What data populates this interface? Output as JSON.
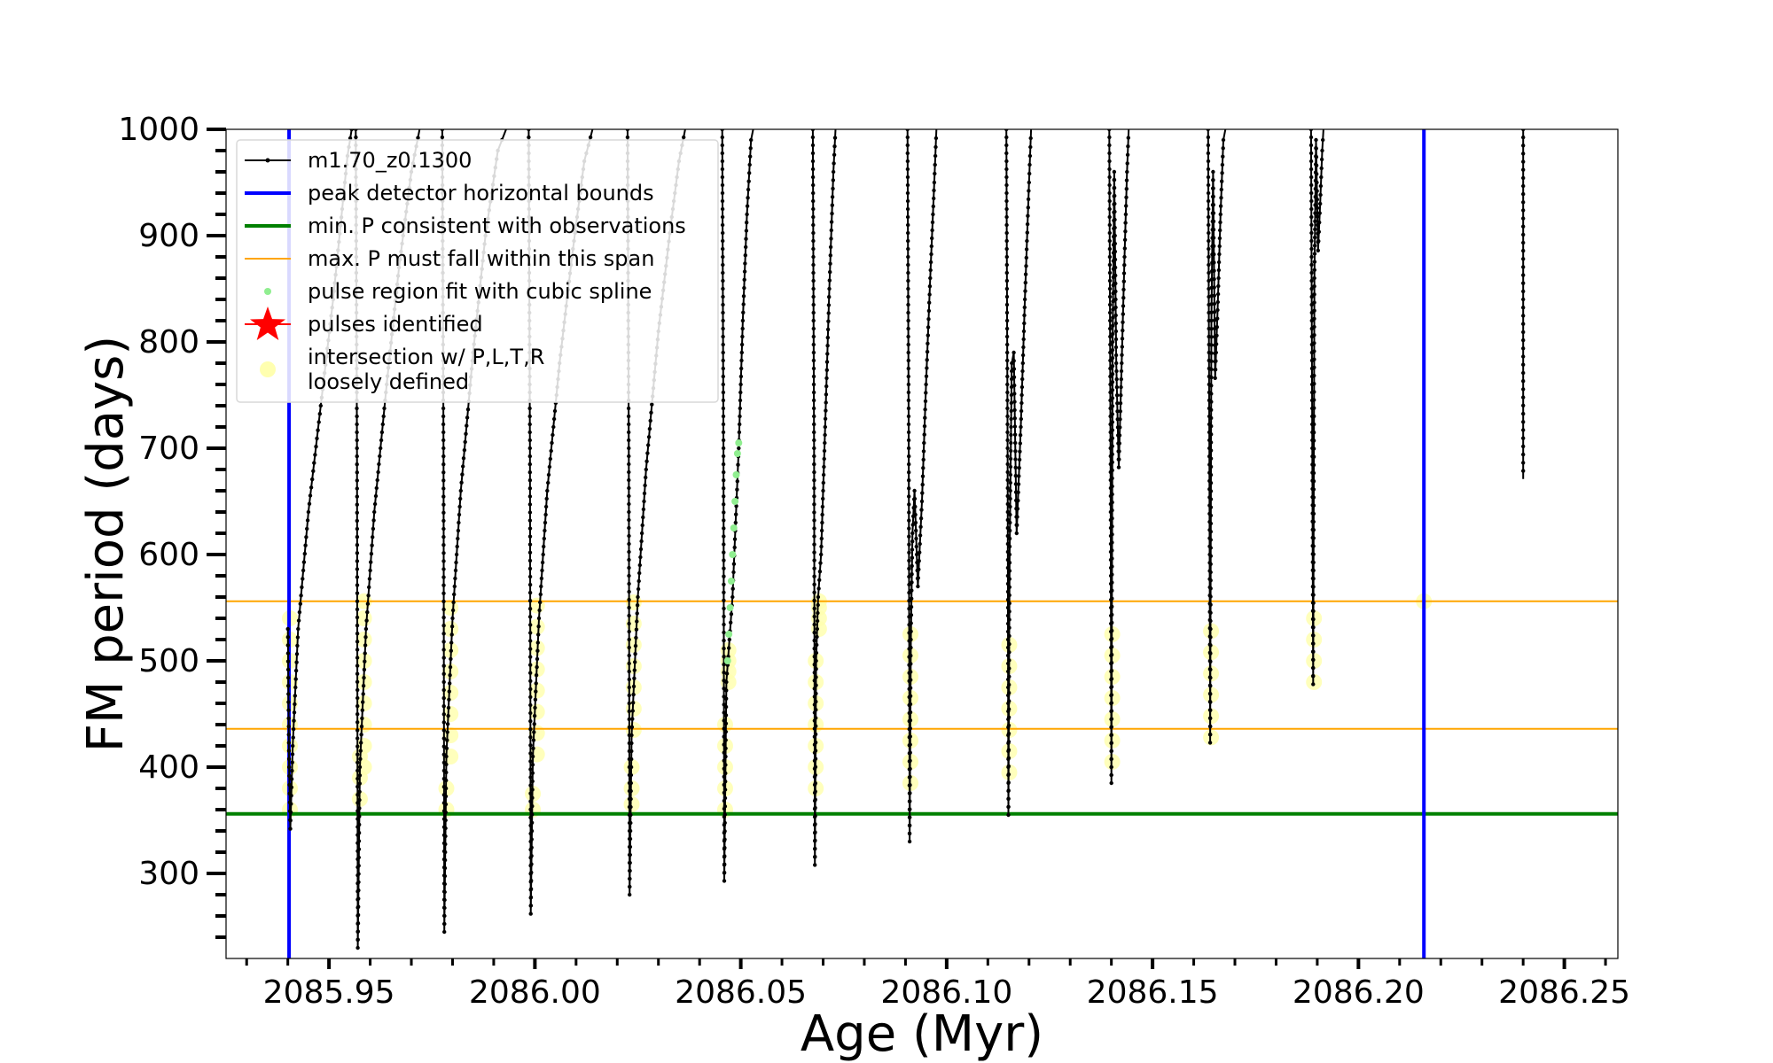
{
  "chart_data": {
    "type": "line",
    "xlabel": "Age (Myr)",
    "ylabel": "FM period (days)",
    "xlim": [
      2085.925,
      2086.263
    ],
    "ylim": [
      220,
      1000
    ],
    "x_ticks": [
      2085.95,
      2086.0,
      2086.05,
      2086.1,
      2086.15,
      2086.2,
      2086.25
    ],
    "x_tick_labels": [
      "2085.95",
      "2086.00",
      "2086.05",
      "2086.10",
      "2086.15",
      "2086.20",
      "2086.25"
    ],
    "y_ticks": [
      300,
      400,
      500,
      600,
      700,
      800,
      900,
      1000
    ],
    "y_tick_labels": [
      "300",
      "400",
      "500",
      "600",
      "700",
      "800",
      "900",
      "1000"
    ],
    "grid": false,
    "legend_position": "top-left",
    "legend": [
      {
        "label": "m1.70_z0.1300",
        "kind": "line-marker",
        "color": "#000000"
      },
      {
        "label": "peak detector horizontal bounds",
        "kind": "line",
        "color": "#0000ff"
      },
      {
        "label": "min. P consistent with observations",
        "kind": "line",
        "color": "#008000"
      },
      {
        "label": "max. P must fall within this span",
        "kind": "line",
        "color": "#ffa500"
      },
      {
        "label": "pulse region fit with cubic spline",
        "kind": "dot",
        "color": "#90ee90"
      },
      {
        "label": "pulses identified",
        "kind": "star",
        "color": "#ff0000"
      },
      {
        "label": "intersection w/ P,L,T,R",
        "label2": "loosely defined",
        "kind": "dot-big",
        "color": "#ffffb0"
      }
    ],
    "vertical_bounds": [
      2085.9403,
      2086.2159
    ],
    "min_period": 356,
    "max_period_span": [
      436,
      556
    ],
    "series": [
      {
        "name": "m1.70_z0.1300",
        "color": "#000000",
        "segments": [
          {
            "x": [
              2085.94,
              2085.9403,
              2085.9406,
              2085.9412,
              2085.9425,
              2085.945,
              2085.948,
              2085.951,
              2085.9532,
              2085.9545,
              2085.9555,
              2085.956
            ],
            "y": [
              530,
              400,
              342,
              420,
              530,
              640,
              740,
              840,
              925,
              975,
              1000,
              1000
            ]
          },
          {
            "x": [
              2085.9565,
              2085.9568,
              2085.957,
              2085.9575,
              2085.959,
              2085.961,
              2085.964,
              2085.967,
              2085.97,
              2085.972
            ],
            "y": [
              1000,
              700,
              230,
              400,
              530,
              640,
              760,
              870,
              960,
              1000
            ]
          },
          {
            "x": [
              2085.9775,
              2085.9778,
              2085.978,
              2085.9785,
              2085.98,
              2085.982,
              2085.985,
              2085.988,
              2085.991,
              2085.993
            ],
            "y": [
              1000,
              700,
              245,
              410,
              540,
              660,
              790,
              900,
              980,
              1000
            ]
          },
          {
            "x": [
              2085.9985,
              2085.9988,
              2085.999,
              2085.9995,
              2086.001,
              2086.003,
              2086.006,
              2086.009,
              2086.012,
              2086.014
            ],
            "y": [
              1000,
              700,
              262,
              410,
              540,
              660,
              780,
              880,
              970,
              1000
            ]
          },
          {
            "x": [
              2086.0225,
              2086.0228,
              2086.023,
              2086.0235,
              2086.025,
              2086.027,
              2086.03,
              2086.033,
              2086.035,
              2086.0365
            ],
            "y": [
              1000,
              700,
              280,
              430,
              560,
              680,
              810,
              910,
              970,
              1000
            ]
          },
          {
            "x": [
              2086.0455,
              2086.0458,
              2086.046,
              2086.0465,
              2086.048,
              2086.0495,
              2086.0505,
              2086.0515,
              2086.0525,
              2086.053
            ],
            "y": [
              1000,
              700,
              293,
              480,
              560,
              700,
              820,
              920,
              990,
              1000
            ]
          },
          {
            "x": [
              2086.0675,
              2086.0678,
              2086.068,
              2086.0683,
              2086.0688,
              2086.0695,
              2086.0705,
              2086.0715,
              2086.0725,
              2086.073
            ],
            "y": [
              1000,
              700,
              308,
              500,
              560,
              600,
              720,
              850,
              960,
              1000
            ]
          },
          {
            "x": [
              2086.0905,
              2086.0908,
              2086.091,
              2086.0913,
              2086.0917,
              2086.0922,
              2086.093,
              2086.094,
              2086.095,
              2086.096,
              2086.097,
              2086.0975
            ],
            "y": [
              1000,
              700,
              330,
              520,
              620,
              660,
              570,
              650,
              760,
              860,
              950,
              1000
            ]
          },
          {
            "x": [
              2086.1145,
              2086.1148,
              2086.115,
              2086.1153,
              2086.1158,
              2086.1163,
              2086.117,
              2086.118,
              2086.119,
              2086.12,
              2086.1205
            ],
            "y": [
              1000,
              700,
              355,
              600,
              780,
              790,
              620,
              720,
              840,
              950,
              1000
            ]
          },
          {
            "x": [
              2086.1395,
              2086.1398,
              2086.14,
              2086.1403,
              2086.1407,
              2086.1412,
              2086.1418,
              2086.1425,
              2086.1432,
              2086.1438,
              2086.1442
            ],
            "y": [
              1000,
              700,
              385,
              800,
              960,
              780,
              682,
              780,
              880,
              960,
              1000
            ]
          },
          {
            "x": [
              2086.1635,
              2086.1638,
              2086.164,
              2086.1643,
              2086.1647,
              2086.1652,
              2086.1658,
              2086.1665,
              2086.1672,
              2086.1677
            ],
            "y": [
              1000,
              700,
              423,
              820,
              960,
              766,
              830,
              920,
              990,
              1000
            ]
          },
          {
            "x": [
              2086.1885,
              2086.1888,
              2086.189,
              2086.1893,
              2086.1897,
              2086.1902,
              2086.1907,
              2086.1912,
              2086.1915
            ],
            "y": [
              1000,
              700,
              478,
              860,
              990,
              886,
              930,
              980,
              1000
            ]
          },
          {
            "x": [
              2086.24,
              2086.24,
              2086.24
            ],
            "y": [
              1000,
              840,
              671
            ]
          }
        ]
      },
      {
        "name": "pulse region fit with cubic spline",
        "color": "#90ee90",
        "points_x": [
          2086.0468,
          2086.0471,
          2086.0474,
          2086.0477,
          2086.048,
          2086.0483,
          2086.0486,
          2086.0489,
          2086.0492,
          2086.0495
        ],
        "points_y": [
          500,
          525,
          550,
          575,
          600,
          625,
          650,
          675,
          695,
          705
        ]
      },
      {
        "name": "intersection w/ P,L,T,R loosely defined",
        "color": "#ffffb0",
        "columns": [
          {
            "x": 2085.9405,
            "y": [
              360,
              380,
              400,
              420,
              440,
              460,
              480,
              500,
              520,
              540
            ]
          },
          {
            "x": 2085.9585,
            "y": [
              400,
              420,
              440,
              460,
              480,
              500,
              520,
              540,
              556
            ]
          },
          {
            "x": 2085.9795,
            "y": [
              410,
              430,
              450,
              470,
              490,
              510,
              530,
              550
            ]
          },
          {
            "x": 2086.0005,
            "y": [
              412,
              432,
              452,
              472,
              492,
              512,
              532,
              552
            ]
          },
          {
            "x": 2086.024,
            "y": [
              435,
              455,
              475,
              495,
              515,
              535,
              555
            ]
          },
          {
            "x": 2086.047,
            "y": [
              480,
              490,
              500,
              510
            ]
          },
          {
            "x": 2086.069,
            "y": [
              530,
              540,
              550,
              556
            ]
          },
          {
            "x": 2085.9575,
            "y": [
              370,
              390,
              410
            ]
          },
          {
            "x": 2085.9785,
            "y": [
              360,
              380
            ]
          },
          {
            "x": 2085.9995,
            "y": [
              360,
              375
            ]
          },
          {
            "x": 2086.0235,
            "y": [
              365,
              380,
              400
            ]
          },
          {
            "x": 2086.0462,
            "y": [
              360,
              380,
              400,
              420,
              440
            ]
          },
          {
            "x": 2086.0682,
            "y": [
              380,
              400,
              420,
              440,
              460,
              480,
              500
            ]
          },
          {
            "x": 2086.0912,
            "y": [
              385,
              405,
              425,
              445,
              465,
              485,
              505,
              525
            ]
          },
          {
            "x": 2086.1152,
            "y": [
              395,
              415,
              435,
              455,
              475,
              495,
              515
            ]
          },
          {
            "x": 2086.1402,
            "y": [
              405,
              425,
              445,
              465,
              485,
              505,
              525
            ]
          },
          {
            "x": 2086.1642,
            "y": [
              428,
              448,
              468,
              488,
              508,
              528
            ]
          },
          {
            "x": 2086.1892,
            "y": [
              480,
              500,
              520,
              540
            ]
          },
          {
            "x": 2086.2159,
            "y": [
              556
            ]
          }
        ]
      }
    ]
  }
}
